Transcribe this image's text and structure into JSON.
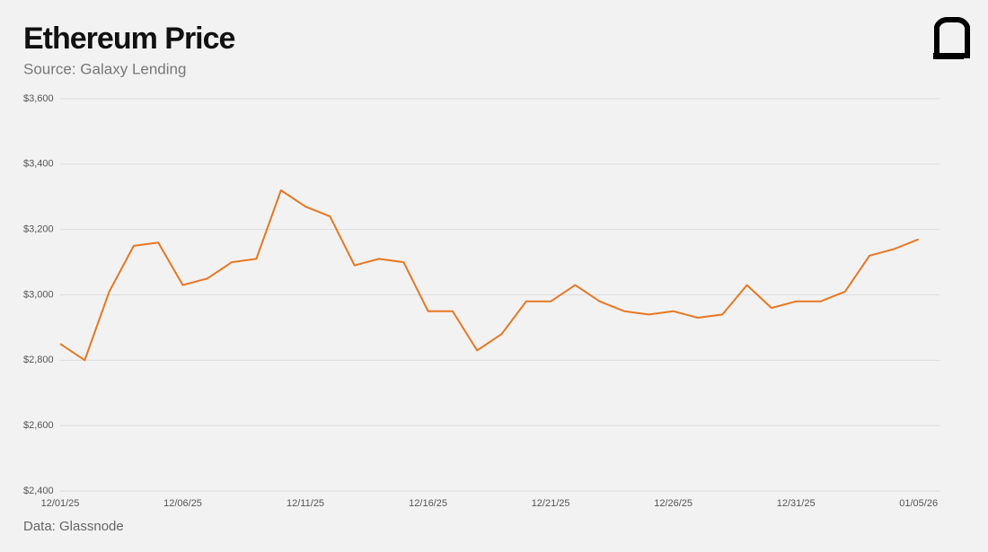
{
  "chart_data": {
    "type": "line",
    "title": "Ethereum Price",
    "subtitle": "Source: Galaxy Lending",
    "source": "Data: Glassnode",
    "x": [
      "12/01/25",
      "12/02/25",
      "12/03/25",
      "12/04/25",
      "12/05/25",
      "12/06/25",
      "12/07/25",
      "12/08/25",
      "12/09/25",
      "12/10/25",
      "12/11/25",
      "12/12/25",
      "12/13/25",
      "12/14/25",
      "12/15/25",
      "12/16/25",
      "12/17/25",
      "12/18/25",
      "12/19/25",
      "12/20/25",
      "12/21/25",
      "12/22/25",
      "12/23/25",
      "12/24/25",
      "12/25/25",
      "12/26/25",
      "12/27/25",
      "12/28/25",
      "12/29/25",
      "12/30/25",
      "12/31/25",
      "01/01/26",
      "01/02/26",
      "01/03/26",
      "01/04/26",
      "01/05/26"
    ],
    "series": [
      {
        "name": "ETH",
        "color": "#e87722",
        "values": [
          2850,
          2800,
          3010,
          3150,
          3160,
          3030,
          3050,
          3100,
          3110,
          3320,
          3270,
          3240,
          3090,
          3110,
          3100,
          2950,
          2950,
          2830,
          2880,
          2980,
          2980,
          3030,
          2980,
          2950,
          2940,
          2950,
          2930,
          2940,
          3030,
          2960,
          2980,
          2980,
          3010,
          3120,
          3140,
          3170
        ]
      }
    ],
    "xlim": [
      "12/01/25",
      "01/06/26"
    ],
    "xticks": [
      "12/01/25",
      "12/06/25",
      "12/11/25",
      "12/16/25",
      "12/21/25",
      "12/26/25",
      "12/31/25",
      "01/05/26"
    ],
    "ylim": [
      2400,
      3600
    ],
    "yticks": [
      {
        "value": 2400,
        "label": "$2,400"
      },
      {
        "value": 2600,
        "label": "$2,600"
      },
      {
        "value": 2800,
        "label": "$2,800"
      },
      {
        "value": 3000,
        "label": "$3,000"
      },
      {
        "value": 3200,
        "label": "$3,200"
      },
      {
        "value": 3400,
        "label": "$3,400"
      },
      {
        "value": 3600,
        "label": "$3,600"
      }
    ],
    "grid": true
  }
}
